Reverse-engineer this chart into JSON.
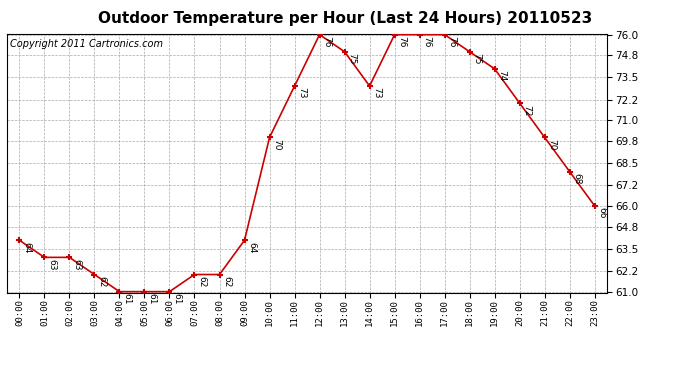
{
  "title": "Outdoor Temperature per Hour (Last 24 Hours) 20110523",
  "copyright": "Copyright 2011 Cartronics.com",
  "hours": [
    "00:00",
    "01:00",
    "02:00",
    "03:00",
    "04:00",
    "05:00",
    "06:00",
    "07:00",
    "08:00",
    "09:00",
    "10:00",
    "11:00",
    "12:00",
    "13:00",
    "14:00",
    "15:00",
    "16:00",
    "17:00",
    "18:00",
    "19:00",
    "20:00",
    "21:00",
    "22:00",
    "23:00"
  ],
  "temps": [
    64,
    63,
    63,
    62,
    61,
    61,
    61,
    62,
    62,
    64,
    70,
    73,
    76,
    75,
    73,
    76,
    76,
    76,
    75,
    74,
    72,
    70,
    68,
    66
  ],
  "line_color": "#cc0000",
  "marker_color": "#cc0000",
  "bg_color": "#ffffff",
  "grid_color": "#aaaaaa",
  "ylim_min": 61.0,
  "ylim_max": 76.0,
  "yticks": [
    61.0,
    62.2,
    63.5,
    64.8,
    66.0,
    67.2,
    68.5,
    69.8,
    71.0,
    72.2,
    73.5,
    74.8,
    76.0
  ],
  "title_fontsize": 11,
  "copyright_fontsize": 7,
  "label_fontsize": 6.5,
  "tick_fontsize": 7.5,
  "xtick_fontsize": 6.5
}
